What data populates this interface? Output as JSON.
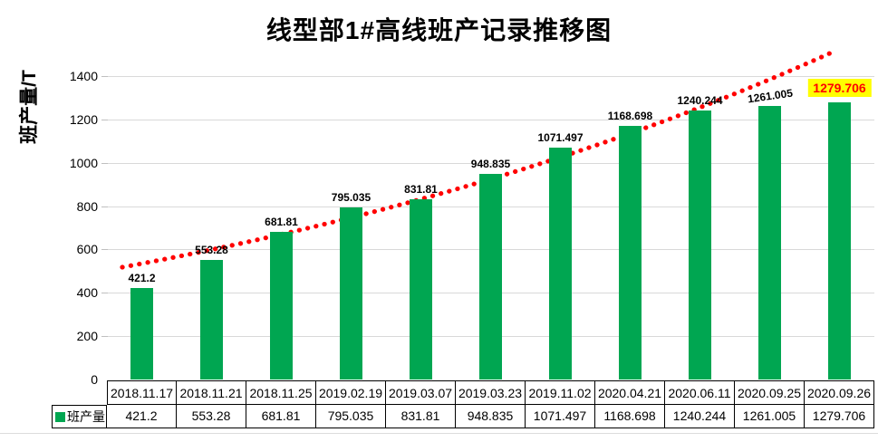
{
  "chart_data": {
    "type": "bar",
    "title": "线型部1#高线班产记录推移图",
    "ylabel": "班产量/T",
    "categories": [
      "2018.11.17",
      "2018.11.21",
      "2018.11.25",
      "2019.02.19",
      "2019.03.07",
      "2019.03.23",
      "2019.11.02",
      "2020.04.21",
      "2020.06.11",
      "2020.09.25",
      "2020.09.26"
    ],
    "series": [
      {
        "name": "班产量",
        "values": [
          421.2,
          553.28,
          681.81,
          795.035,
          831.81,
          948.835,
          1071.497,
          1168.698,
          1240.244,
          1261.005,
          1279.706
        ]
      }
    ],
    "ylim": [
      0,
      1400
    ],
    "ytick_interval": 200,
    "grid": true,
    "legend_entries": [
      "班产量"
    ],
    "legend_position": "table-row-left",
    "trendline": {
      "type": "dotted",
      "color": "#FF0000"
    },
    "colors": {
      "bar": "#00A651",
      "gridline": "#D9D9D9",
      "label_text": "#000000",
      "highlight_text": "#FF0000",
      "highlight_bg": "#FFFF00"
    },
    "highlight_last_label": true
  }
}
